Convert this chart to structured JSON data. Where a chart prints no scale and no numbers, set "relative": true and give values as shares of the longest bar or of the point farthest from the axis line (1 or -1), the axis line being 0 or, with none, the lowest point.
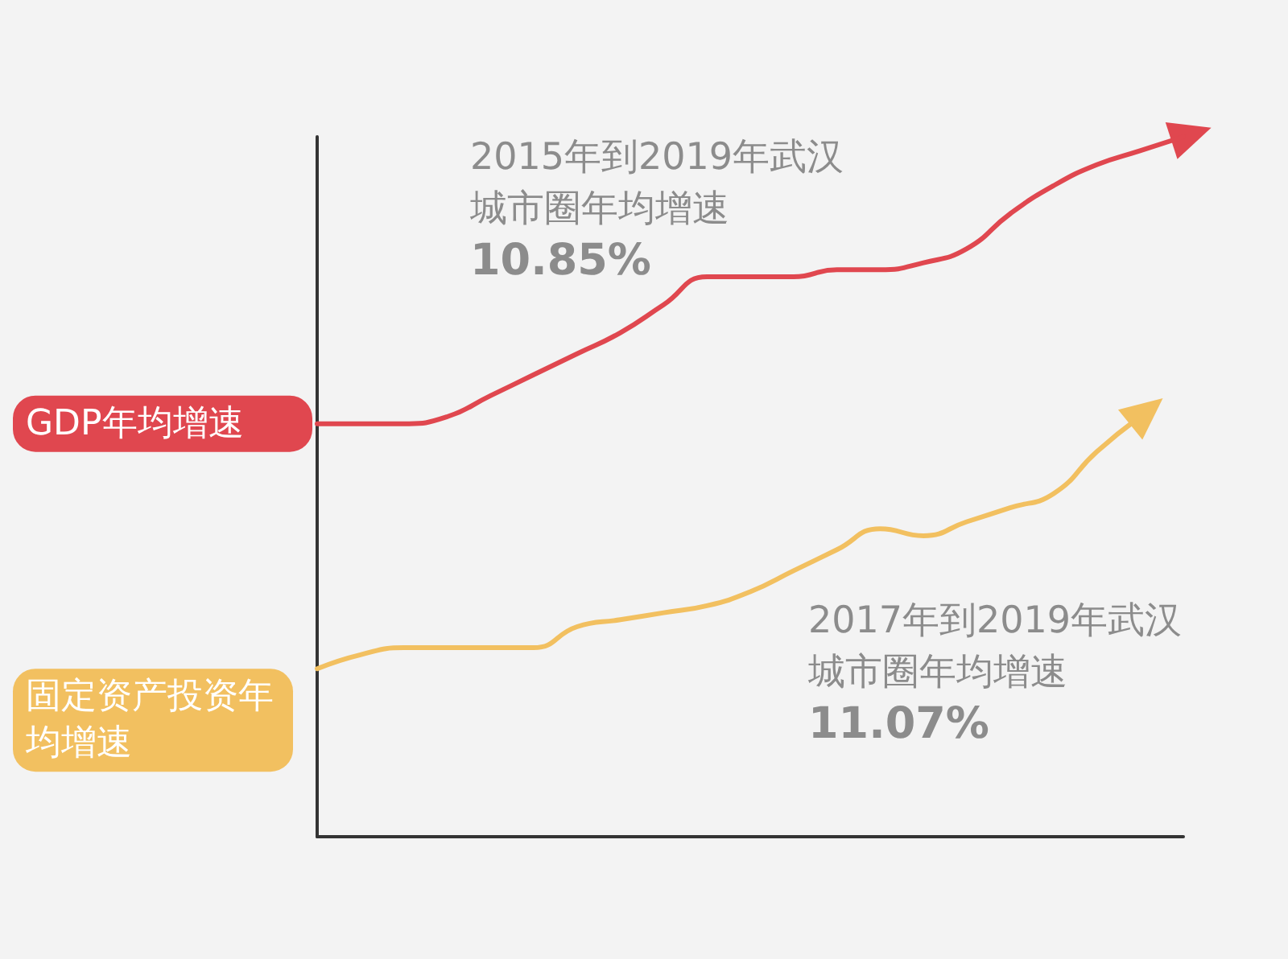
{
  "chart_data": {
    "type": "line",
    "relative": true,
    "categories": [
      null,
      null,
      null,
      null,
      null,
      null,
      null,
      null,
      null,
      null,
      null,
      null,
      null,
      null,
      null,
      null,
      null,
      null,
      null,
      null,
      null
    ],
    "series": [
      {
        "name": "GDP年均增速",
        "color": "#e0474f",
        "values": [
          0.59,
          0.59,
          0.59,
          0.6,
          0.63,
          0.66,
          0.69,
          0.72,
          0.76,
          0.8,
          0.8,
          0.8,
          0.81,
          0.81,
          0.82,
          0.84,
          0.89,
          0.93,
          0.96,
          0.98,
          1
        ]
      },
      {
        "name": "固定资产投资年均增速",
        "color": "#f2c060",
        "values": [
          0.24,
          0.26,
          0.27,
          0.27,
          0.27,
          0.27,
          0.3,
          0.31,
          0.32,
          0.33,
          0.35,
          0.38,
          0.41,
          0.44,
          0.43,
          0.45,
          0.47,
          0.49,
          0.55,
          0.6,
          null
        ]
      }
    ],
    "annotations": [
      "2015年到2019年武汉城市圈年均增速",
      "10.85%",
      "2017年到2019年武汉城市圈年均增速",
      "11.07%"
    ],
    "marker": "none",
    "line_style": "solid",
    "grid": false
  }
}
